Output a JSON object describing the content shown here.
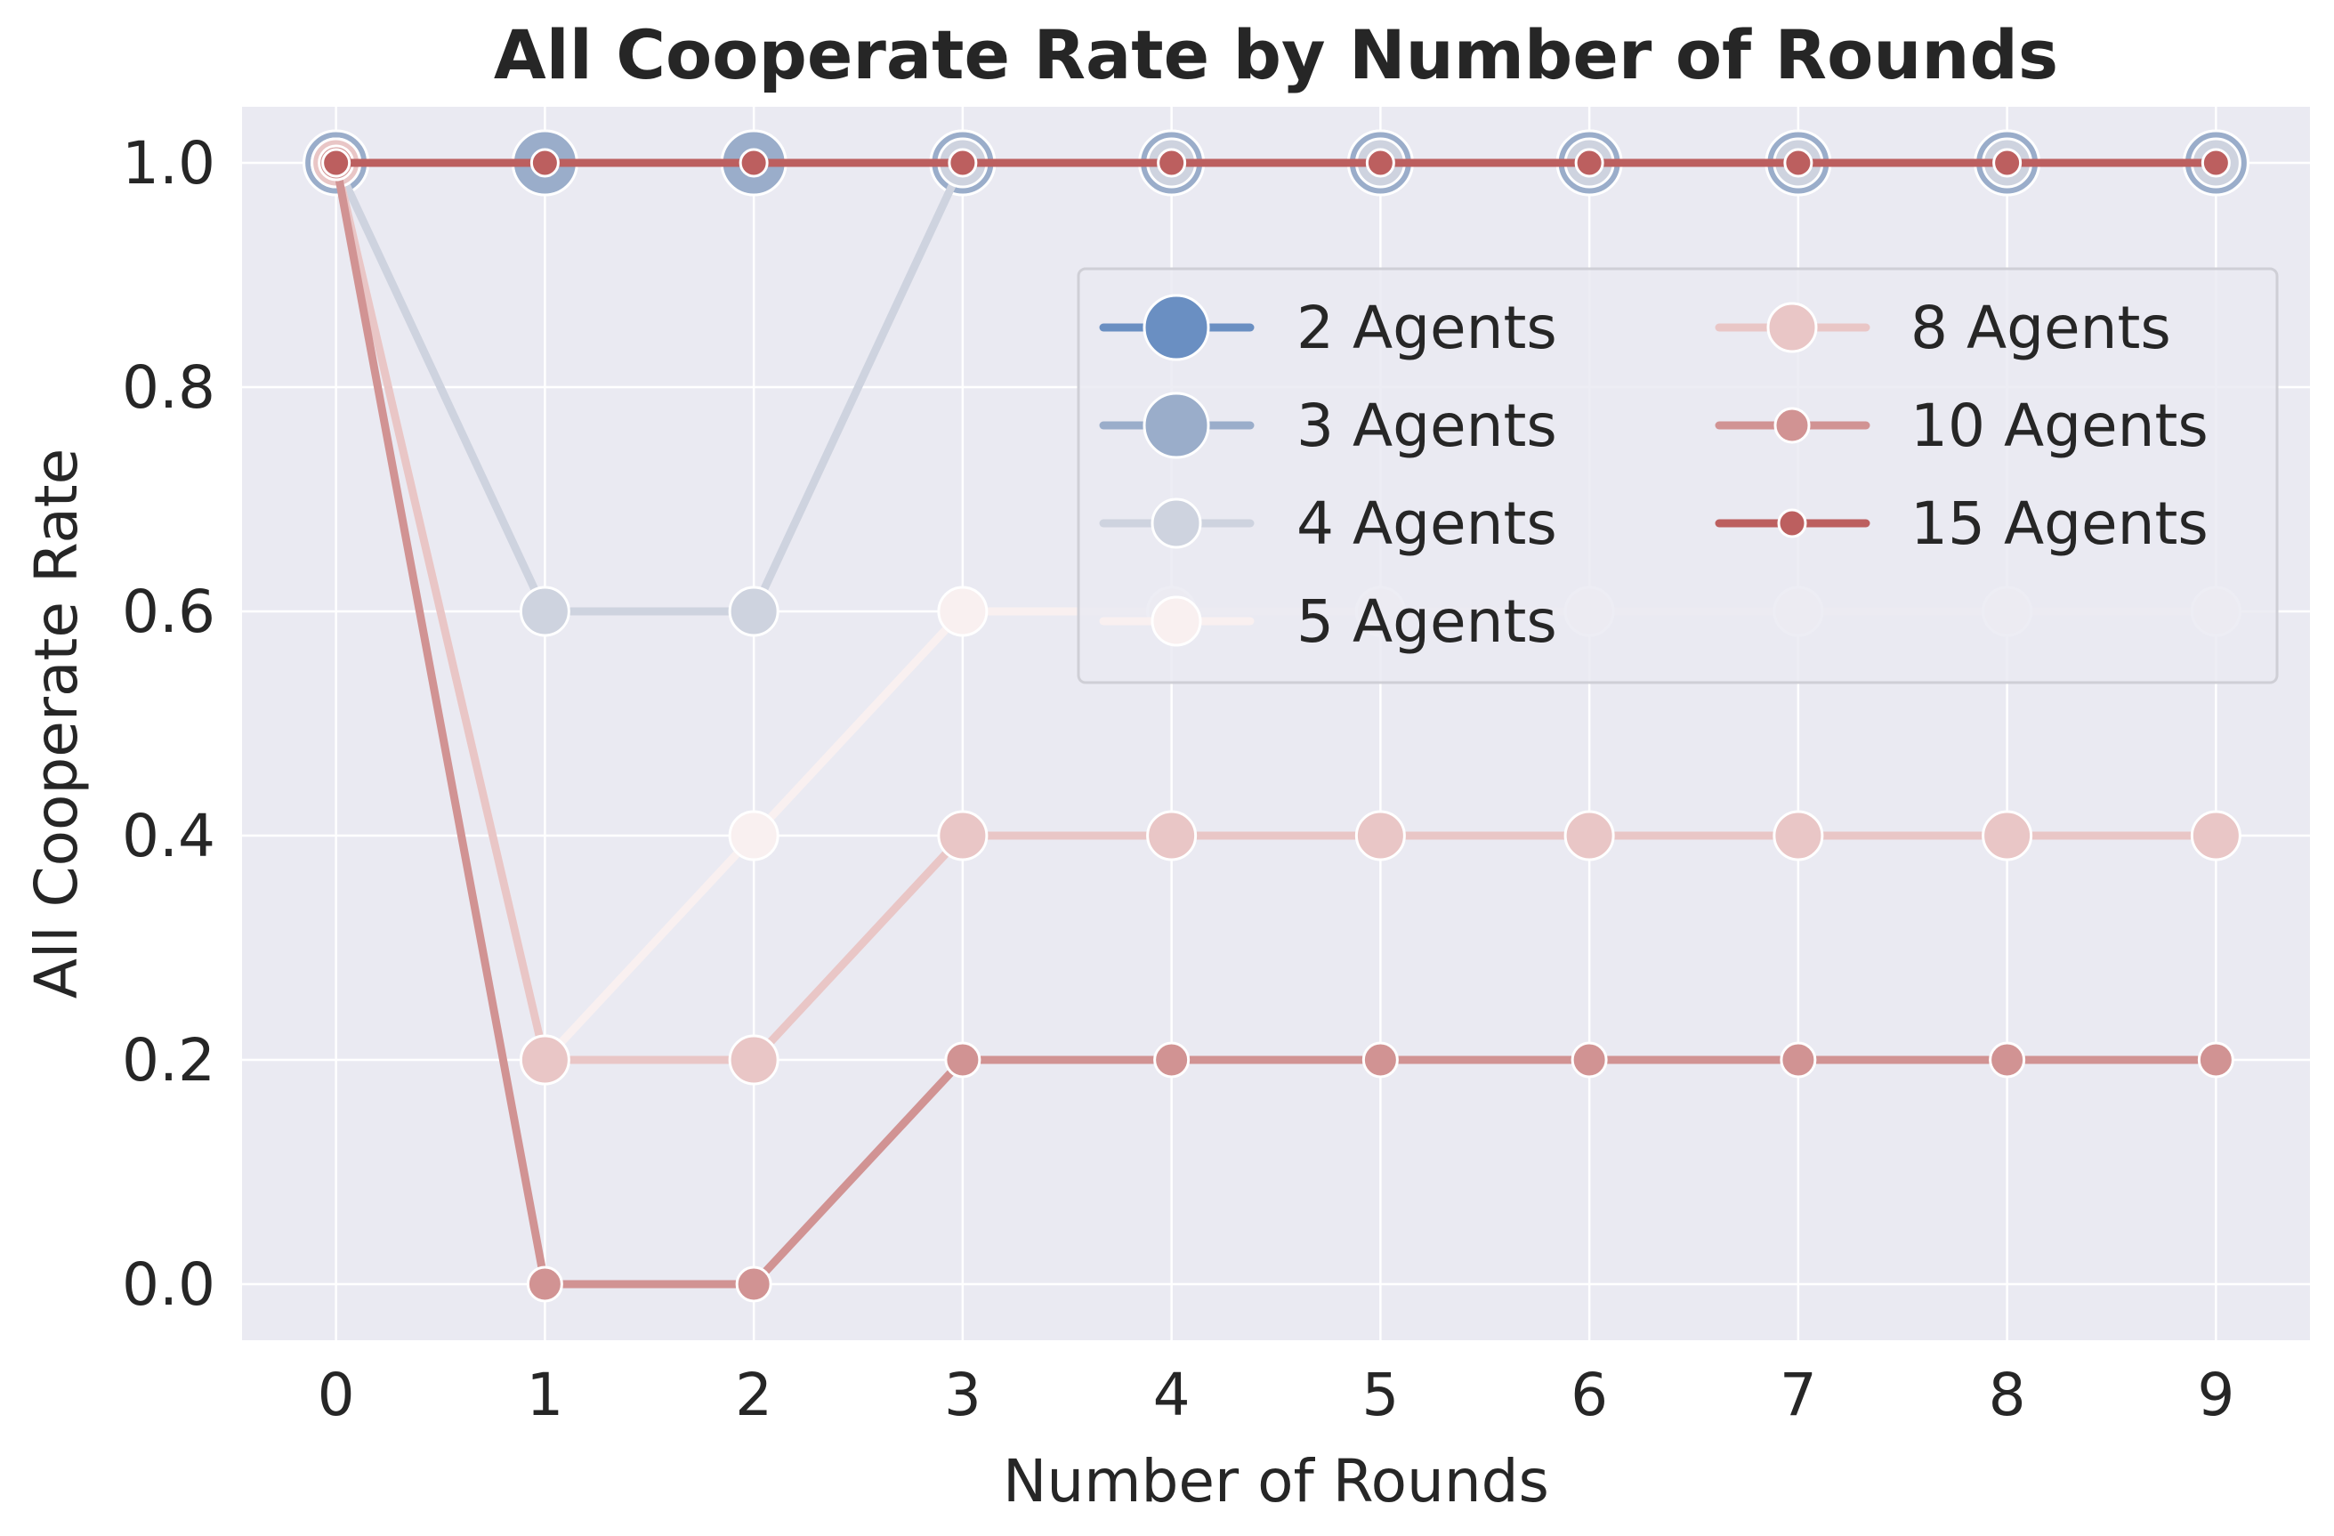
{
  "chart_data": {
    "type": "line",
    "title": "All Cooperate Rate by Number of Rounds",
    "xlabel": "Number of Rounds",
    "ylabel": "All Cooperate Rate",
    "x": [
      0,
      1,
      2,
      3,
      4,
      5,
      6,
      7,
      8,
      9
    ],
    "xticks": [
      "0",
      "1",
      "2",
      "3",
      "4",
      "5",
      "6",
      "7",
      "8",
      "9"
    ],
    "yticks": [
      "0.0",
      "0.2",
      "0.4",
      "0.6",
      "0.8",
      "1.0"
    ],
    "xlim": [
      -0.45,
      9.45
    ],
    "ylim": [
      -0.05,
      1.05
    ],
    "grid": true,
    "legend_position": "upper right",
    "legend_columns": 2,
    "plot_background": "#eaeaf2",
    "series": [
      {
        "name": "2 Agents",
        "color": "#6a8fc2",
        "line_opacity": 1.0,
        "marker_size": "large",
        "values": [
          1.0,
          1.0,
          1.0,
          1.0,
          1.0,
          1.0,
          1.0,
          1.0,
          1.0,
          1.0
        ]
      },
      {
        "name": "3 Agents",
        "color": "#9aadca",
        "line_opacity": 1.0,
        "marker_size": "large",
        "values": [
          1.0,
          1.0,
          1.0,
          1.0,
          1.0,
          1.0,
          1.0,
          1.0,
          1.0,
          1.0
        ]
      },
      {
        "name": "4 Agents",
        "color": "#ced3df",
        "line_opacity": 1.0,
        "marker_size": "medium",
        "values": [
          1.0,
          0.6,
          0.6,
          1.0,
          1.0,
          1.0,
          1.0,
          1.0,
          1.0,
          1.0
        ]
      },
      {
        "name": "5 Agents",
        "color": "#f9f0f0",
        "line_opacity": 1.0,
        "marker_size": "medium",
        "values": [
          1.0,
          0.2,
          0.4,
          0.6,
          0.6,
          0.6,
          0.6,
          0.6,
          0.6,
          0.6
        ]
      },
      {
        "name": "8 Agents",
        "color": "#e9c6c6",
        "line_opacity": 1.0,
        "marker_size": "medium",
        "values": [
          1.0,
          0.2,
          0.2,
          0.4,
          0.4,
          0.4,
          0.4,
          0.4,
          0.4,
          0.4
        ]
      },
      {
        "name": "10 Agents",
        "color": "#d19393",
        "line_opacity": 1.0,
        "marker_size": "small",
        "values": [
          1.0,
          0.0,
          0.0,
          0.2,
          0.2,
          0.2,
          0.2,
          0.2,
          0.2,
          0.2
        ]
      },
      {
        "name": "15 Agents",
        "color": "#bc5f5f",
        "line_opacity": 1.0,
        "marker_size": "tiny",
        "values": [
          1.0,
          1.0,
          1.0,
          1.0,
          1.0,
          1.0,
          1.0,
          1.0,
          1.0,
          1.0
        ]
      }
    ]
  }
}
